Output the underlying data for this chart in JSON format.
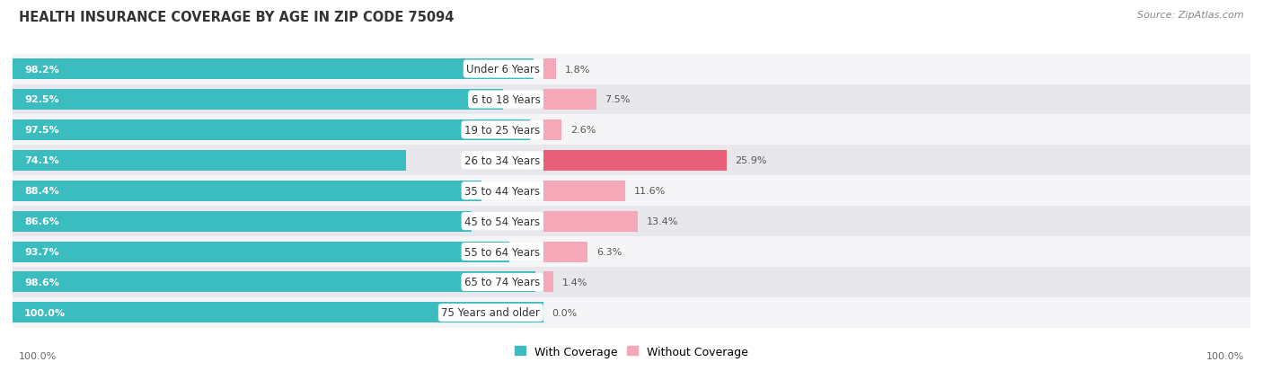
{
  "title": "HEALTH INSURANCE COVERAGE BY AGE IN ZIP CODE 75094",
  "source": "Source: ZipAtlas.com",
  "categories": [
    "Under 6 Years",
    "6 to 18 Years",
    "19 to 25 Years",
    "26 to 34 Years",
    "35 to 44 Years",
    "45 to 54 Years",
    "55 to 64 Years",
    "65 to 74 Years",
    "75 Years and older"
  ],
  "with_coverage": [
    98.2,
    92.5,
    97.5,
    74.1,
    88.4,
    86.6,
    93.7,
    98.6,
    100.0
  ],
  "without_coverage": [
    1.8,
    7.5,
    2.6,
    25.9,
    11.6,
    13.4,
    6.3,
    1.4,
    0.0
  ],
  "color_with": "#3BBCBE",
  "color_without_strong": "#E8607A",
  "color_without_light": "#F4A8B8",
  "color_row_bg_light": "#F5F5F7",
  "color_row_bg_dark": "#E8E8EC",
  "background_color": "#FFFFFF",
  "title_fontsize": 10.5,
  "label_fontsize": 8.5,
  "bar_label_fontsize": 8,
  "legend_fontsize": 9,
  "footer_fontsize": 8,
  "without_coverage_threshold": 15
}
